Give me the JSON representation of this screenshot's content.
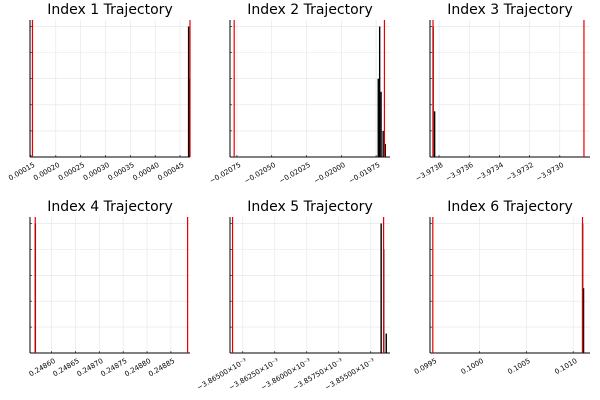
{
  "chart_data": [
    {
      "type": "histogram",
      "title": "Index 1 Trajectory",
      "xlabel": "",
      "ylabel": "",
      "xlim": [
        0.000148,
        0.00047
      ],
      "x_ticks": [
        0.00015,
        0.0002,
        0.00025,
        0.0003,
        0.00035,
        0.0004,
        0.00045
      ],
      "x_tick_labels": [
        "0.00015",
        "0.00020",
        "0.00025",
        "0.00030",
        "0.00035",
        "0.00040",
        "0.00045"
      ],
      "y_ticks": [
        0.2,
        0.4,
        0.6,
        0.8,
        1.0
      ],
      "ylim": [
        0,
        1.05
      ],
      "red_lines": [
        0.000153,
        0.00047
      ],
      "bars": [
        {
          "x": 0.000467,
          "h": 1.0
        },
        {
          "x": 0.000468,
          "h": 0.6
        }
      ],
      "grid": true,
      "legend": "none"
    },
    {
      "type": "histogram",
      "title": "Index 2 Trajectory",
      "xlabel": "",
      "ylabel": "",
      "xlim": [
        -0.0208,
        -0.01965
      ],
      "x_ticks": [
        -0.02075,
        -0.0205,
        -0.02025,
        -0.02,
        -0.01975
      ],
      "x_tick_labels": [
        "−0.02075",
        "−0.02050",
        "−0.02025",
        "−0.02000",
        "−0.01975"
      ],
      "y_ticks": [
        0.2,
        0.4,
        0.6,
        0.8,
        1.0
      ],
      "ylim": [
        0,
        1.05
      ],
      "red_lines": [
        -0.02077,
        -0.01969
      ],
      "bars": [
        {
          "x": -0.019735,
          "h": 0.6
        },
        {
          "x": -0.019725,
          "h": 1.0
        },
        {
          "x": -0.019715,
          "h": 0.5
        },
        {
          "x": -0.0197,
          "h": 0.2
        },
        {
          "x": -0.019685,
          "h": 0.1
        }
      ],
      "grid": true,
      "legend": "none"
    },
    {
      "type": "histogram",
      "title": "Index 3 Trajectory",
      "xlabel": "",
      "ylabel": "",
      "xlim": [
        -3.97386,
        -3.9728
      ],
      "x_ticks": [
        -3.9738,
        -3.9736,
        -3.9734,
        -3.9732,
        -3.973
      ],
      "x_tick_labels": [
        "−3.9738",
        "−3.9736",
        "−3.9734",
        "−3.9732",
        "−3.9730"
      ],
      "y_ticks": [
        0.2,
        0.4,
        0.6,
        0.8,
        1.0
      ],
      "ylim": [
        0,
        1.05
      ],
      "red_lines": [
        -3.97384,
        -3.97284
      ],
      "bars": [
        {
          "x": -3.97384,
          "h": 1.0
        },
        {
          "x": -3.97383,
          "h": 0.35
        }
      ],
      "grid": true,
      "legend": "none"
    },
    {
      "type": "histogram",
      "title": "Index 4 Trajectory",
      "xlabel": "",
      "ylabel": "",
      "xlim": [
        0.248555,
        0.24889
      ],
      "x_ticks": [
        0.2486,
        0.24865,
        0.2487,
        0.24875,
        0.2488,
        0.24885
      ],
      "x_tick_labels": [
        "0.24860",
        "0.24865",
        "0.24870",
        "0.24875",
        "0.24880",
        "0.24885"
      ],
      "y_ticks": [
        0.2,
        0.4,
        0.6,
        0.8,
        1.0
      ],
      "ylim": [
        0,
        1.05
      ],
      "red_lines": [
        0.248566,
        0.248885
      ],
      "bars": [
        {
          "x": 0.248566,
          "h": 1.0
        }
      ],
      "grid": true,
      "legend": "none"
    },
    {
      "type": "histogram",
      "title": "Index 5 Trajectory",
      "xlabel": "",
      "ylabel": "",
      "xlim": [
        -0.003866,
        -0.0038535
      ],
      "x_ticks": [
        -0.003865,
        -0.0038625,
        -0.00386,
        -0.0038575,
        -0.003855
      ],
      "x_tick_labels": [
        "−3.86500×10⁻³",
        "−3.86250×10⁻³",
        "−3.86000×10⁻³",
        "−3.85750×10⁻³",
        "−3.85500×10⁻³"
      ],
      "y_ticks": [
        0.2,
        0.4,
        0.6,
        0.8,
        1.0
      ],
      "ylim": [
        0,
        1.05
      ],
      "red_lines": [
        -0.0038658,
        -0.003854
      ],
      "bars": [
        {
          "x": -0.0038542,
          "h": 1.0
        },
        {
          "x": -0.003854,
          "h": 0.8
        },
        {
          "x": -0.0038538,
          "h": 0.15
        }
      ],
      "grid": true,
      "legend": "none"
    },
    {
      "type": "histogram",
      "title": "Index 6 Trajectory",
      "xlabel": "",
      "ylabel": "",
      "xlim": [
        0.09947,
        0.10118
      ],
      "x_ticks": [
        0.0995,
        0.1,
        0.1005,
        0.101
      ],
      "x_tick_labels": [
        "0.0995",
        "0.1000",
        "0.1005",
        "0.1010"
      ],
      "y_ticks": [
        0.2,
        0.4,
        0.6,
        0.8,
        1.0
      ],
      "ylim": [
        0,
        1.05
      ],
      "red_lines": [
        0.0995,
        0.1011
      ],
      "bars": [
        {
          "x": 0.1011,
          "h": 1.0
        },
        {
          "x": 0.10111,
          "h": 0.5
        }
      ],
      "grid": true,
      "legend": "none"
    }
  ]
}
